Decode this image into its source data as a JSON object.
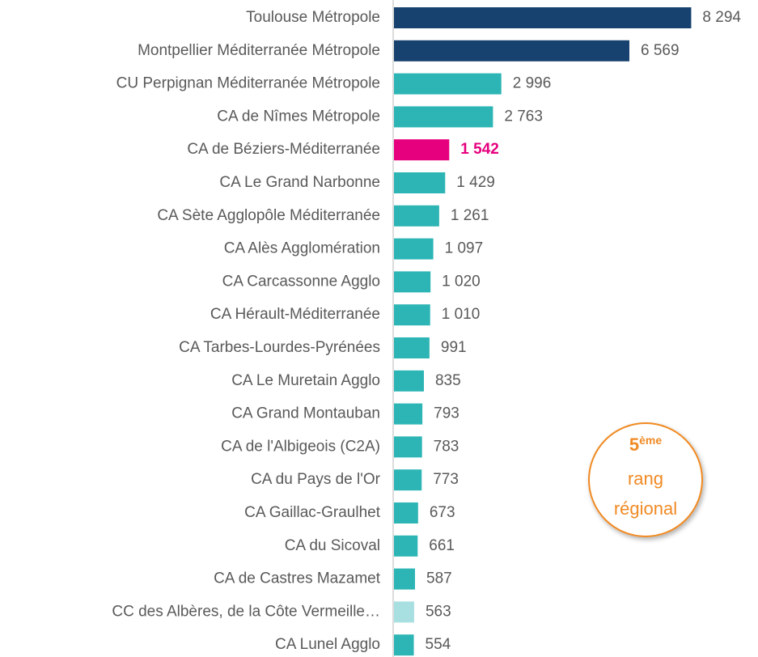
{
  "chart_data": {
    "type": "hbar",
    "categories": [
      "Toulouse Métropole",
      "Montpellier Méditerranée Métropole",
      "CU Perpignan Méditerranée Métropole",
      "CA de Nîmes Métropole",
      "CA de Béziers-Méditerranée",
      "CA Le Grand Narbonne",
      "CA Sète Agglopôle Méditerranée",
      "CA Alès Agglomération",
      "CA Carcassonne Agglo",
      "CA Hérault-Méditerranée",
      "CA Tarbes-Lourdes-Pyrénées",
      "CA Le Muretain Agglo",
      "CA Grand Montauban",
      "CA de l'Albigeois (C2A)",
      "CA du Pays de l'Or",
      "CA Gaillac-Graulhet",
      "CA du Sicoval",
      "CA de Castres Mazamet",
      "CC des Albères, de la Côte Vermeille…",
      "CA Lunel Agglo"
    ],
    "values": [
      8294,
      6569,
      2996,
      2763,
      1542,
      1429,
      1261,
      1097,
      1020,
      1010,
      991,
      835,
      793,
      783,
      773,
      673,
      661,
      587,
      563,
      554
    ],
    "value_labels": [
      "8 294",
      "6 569",
      "2 996",
      "2 763",
      "1 542",
      "1 429",
      "1 261",
      "1 097",
      "1 020",
      "1 010",
      "991",
      "835",
      "793",
      "783",
      "773",
      "673",
      "661",
      "587",
      "563",
      "554"
    ],
    "colors": [
      "#17416e",
      "#17416e",
      "#2db5b5",
      "#2db5b5",
      "#e6007e",
      "#2db5b5",
      "#2db5b5",
      "#2db5b5",
      "#2db5b5",
      "#2db5b5",
      "#2db5b5",
      "#2db5b5",
      "#2db5b5",
      "#2db5b5",
      "#2db5b5",
      "#2db5b5",
      "#2db5b5",
      "#2db5b5",
      "#a8dfe0",
      "#2db5b5"
    ],
    "value_label_colors": [
      "#595959",
      "#595959",
      "#595959",
      "#595959",
      "#e6007e",
      "#595959",
      "#595959",
      "#595959",
      "#595959",
      "#595959",
      "#595959",
      "#595959",
      "#595959",
      "#595959",
      "#595959",
      "#595959",
      "#595959",
      "#595959",
      "#595959",
      "#595959"
    ],
    "xlim": [
      0,
      10000
    ],
    "annotation": {
      "rank": "5",
      "suffix": "ème",
      "lines": [
        "rang",
        "régional"
      ]
    }
  }
}
